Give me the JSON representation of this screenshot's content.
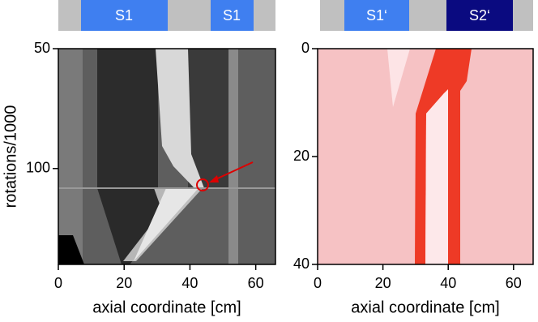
{
  "chart_data": [
    {
      "type": "image",
      "top_labels": [
        "S1",
        "S1"
      ],
      "xlabel": "axial coordinate [cm]",
      "ylabel": "rotations/1000",
      "xlim": [
        0,
        66
      ],
      "xticks": [
        0,
        20,
        40,
        60
      ],
      "ylim": [
        140,
        50
      ],
      "yticks": [
        50,
        100
      ]
    },
    {
      "type": "image",
      "top_labels": [
        "S1‘",
        "S2‘"
      ],
      "xlabel": "axial coordinate [cm]",
      "xlim": [
        0,
        66
      ],
      "xticks": [
        0,
        20,
        40,
        60
      ],
      "ylim": [
        40,
        0
      ],
      "yticks": [
        0,
        20,
        40
      ]
    }
  ]
}
